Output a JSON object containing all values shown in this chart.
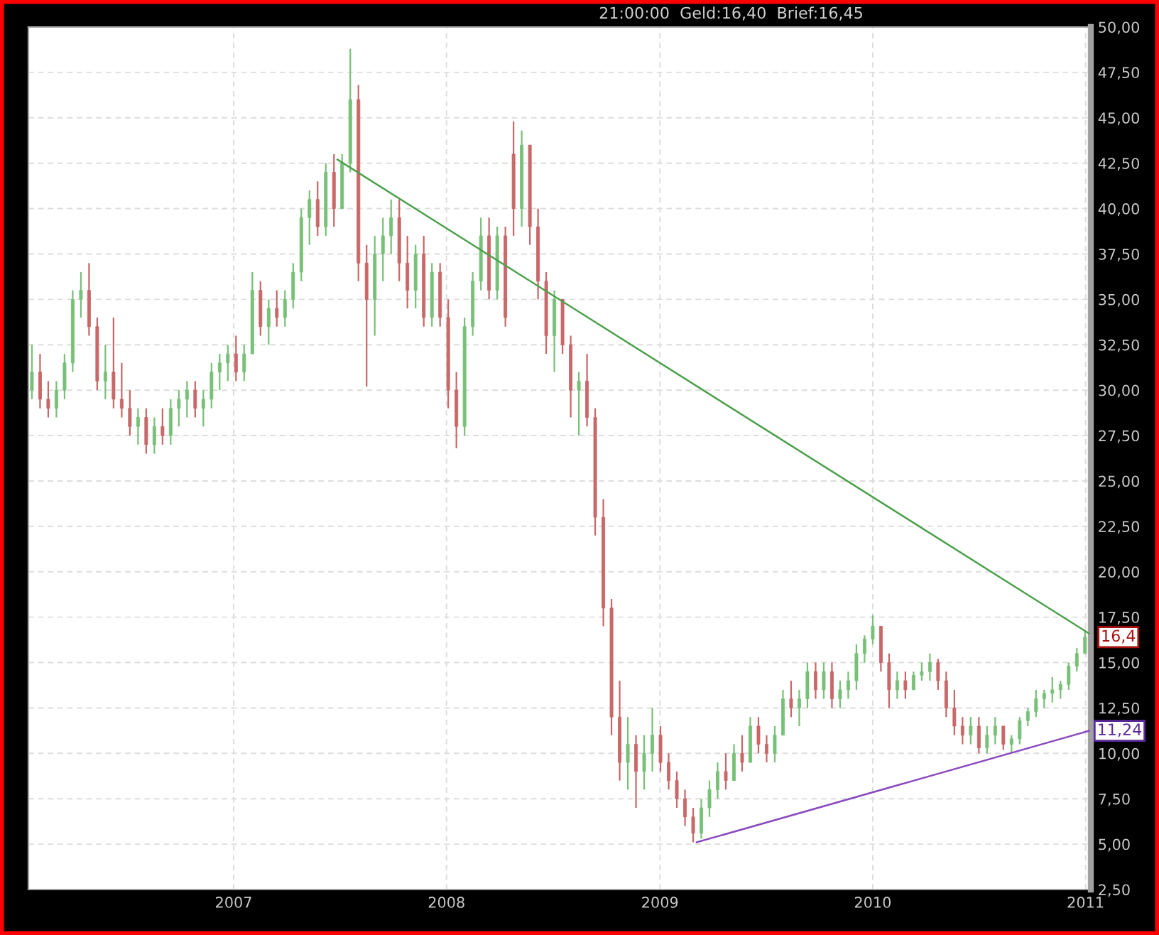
{
  "chart_data": {
    "type": "candlestick",
    "x": [
      "2006-01-20",
      "2006-02-03",
      "2006-02-17",
      "2006-03-03",
      "2006-03-17",
      "2006-03-31",
      "2006-04-14",
      "2006-04-28",
      "2006-05-12",
      "2006-05-26",
      "2006-06-09",
      "2006-06-23",
      "2006-07-07",
      "2006-07-21",
      "2006-08-04",
      "2006-08-18",
      "2006-09-01",
      "2006-09-15",
      "2006-09-29",
      "2006-10-13",
      "2006-10-27",
      "2006-11-10",
      "2006-11-24",
      "2006-12-08",
      "2006-12-22",
      "2007-01-05",
      "2007-01-19",
      "2007-02-02",
      "2007-02-16",
      "2007-03-02",
      "2007-03-16",
      "2007-03-30",
      "2007-04-13",
      "2007-04-27",
      "2007-05-11",
      "2007-05-25",
      "2007-06-08",
      "2007-06-22",
      "2007-07-06",
      "2007-07-20",
      "2007-08-03",
      "2007-08-17",
      "2007-08-31",
      "2007-09-14",
      "2007-09-28",
      "2007-10-12",
      "2007-10-26",
      "2007-11-09",
      "2007-11-23",
      "2007-12-07",
      "2007-12-21",
      "2008-01-04",
      "2008-01-18",
      "2008-02-01",
      "2008-02-15",
      "2008-02-29",
      "2008-03-14",
      "2008-03-28",
      "2008-04-11",
      "2008-04-25",
      "2008-05-09",
      "2008-05-23",
      "2008-06-06",
      "2008-06-20",
      "2008-07-04",
      "2008-07-18",
      "2008-08-01",
      "2008-08-15",
      "2008-08-29",
      "2008-09-12",
      "2008-09-26",
      "2008-10-10",
      "2008-10-24",
      "2008-11-07",
      "2008-11-21",
      "2008-12-05",
      "2008-12-19",
      "2009-01-02",
      "2009-01-16",
      "2009-01-30",
      "2009-02-13",
      "2009-02-27",
      "2009-03-13",
      "2009-03-27",
      "2009-04-10",
      "2009-04-24",
      "2009-05-08",
      "2009-05-22",
      "2009-06-05",
      "2009-06-19",
      "2009-07-03",
      "2009-07-17",
      "2009-07-31",
      "2009-08-14",
      "2009-08-28",
      "2009-09-11",
      "2009-09-25",
      "2009-10-09",
      "2009-10-23",
      "2009-11-06",
      "2009-11-20",
      "2009-12-04",
      "2009-12-18",
      "2010-01-01",
      "2010-01-15",
      "2010-01-29",
      "2010-02-12",
      "2010-02-26",
      "2010-03-12",
      "2010-03-26",
      "2010-04-09",
      "2010-04-23",
      "2010-05-07",
      "2010-05-21",
      "2010-06-04",
      "2010-06-18",
      "2010-07-02",
      "2010-07-16",
      "2010-07-30",
      "2010-08-13",
      "2010-08-27",
      "2010-09-10",
      "2010-09-24",
      "2010-10-08",
      "2010-10-22",
      "2010-11-05",
      "2010-11-19",
      "2010-12-03",
      "2010-12-17",
      "2010-12-31"
    ],
    "ohlc": [
      [
        30,
        32.5,
        29.5,
        31
      ],
      [
        31,
        32,
        29,
        29.5
      ],
      [
        29.5,
        30.5,
        28.5,
        29
      ],
      [
        29,
        30.5,
        28.5,
        30
      ],
      [
        30,
        32,
        29.5,
        31.5
      ],
      [
        31.5,
        35.5,
        31,
        35
      ],
      [
        35,
        36.5,
        34,
        35.5
      ],
      [
        35.5,
        37,
        33,
        33.5
      ],
      [
        33.5,
        34,
        30,
        30.5
      ],
      [
        30.5,
        32.5,
        29.5,
        31
      ],
      [
        31,
        34,
        29,
        29.5
      ],
      [
        29.5,
        31.5,
        28.5,
        29
      ],
      [
        29,
        30,
        27.5,
        28
      ],
      [
        28,
        29,
        27,
        28.5
      ],
      [
        28.5,
        29,
        26.5,
        27
      ],
      [
        27,
        28.5,
        26.5,
        28
      ],
      [
        28,
        29,
        27,
        27.5
      ],
      [
        27.5,
        29.5,
        27,
        29
      ],
      [
        29,
        30,
        28,
        29.5
      ],
      [
        29.5,
        30.5,
        28.5,
        30
      ],
      [
        30,
        30.5,
        28.5,
        29
      ],
      [
        29,
        30,
        28,
        29.5
      ],
      [
        29.5,
        31.5,
        29,
        31
      ],
      [
        31,
        32,
        30,
        31.5
      ],
      [
        31.5,
        32.5,
        30.5,
        32
      ],
      [
        32,
        33,
        30.5,
        31
      ],
      [
        31,
        32.5,
        30.5,
        32
      ],
      [
        32,
        36.5,
        32,
        35.5
      ],
      [
        35.5,
        36,
        33,
        33.5
      ],
      [
        33.5,
        35,
        32.5,
        34.5
      ],
      [
        34.5,
        35.5,
        33.5,
        34
      ],
      [
        34,
        35.5,
        33.5,
        35
      ],
      [
        35,
        37,
        34.5,
        36.5
      ],
      [
        36.5,
        40,
        36,
        39.5
      ],
      [
        39.5,
        41,
        38,
        40.5
      ],
      [
        40.5,
        41.5,
        38.5,
        39
      ],
      [
        39,
        42.5,
        38.5,
        42
      ],
      [
        42,
        43,
        39,
        40
      ],
      [
        40,
        43,
        40,
        42.5
      ],
      [
        42.5,
        48.8,
        42,
        46
      ],
      [
        46,
        46.8,
        36,
        37
      ],
      [
        37,
        38,
        30.2,
        35
      ],
      [
        35,
        38.5,
        33,
        37.5
      ],
      [
        37.5,
        39.5,
        36,
        38.5
      ],
      [
        38.5,
        40.5,
        37.5,
        39.5
      ],
      [
        39.5,
        40.5,
        36,
        37
      ],
      [
        37,
        38.5,
        34.5,
        35.5
      ],
      [
        35.5,
        38,
        34.5,
        37.5
      ],
      [
        37.5,
        38.5,
        33.5,
        34
      ],
      [
        34,
        37,
        33.5,
        36.5
      ],
      [
        36.5,
        37,
        33.5,
        34
      ],
      [
        34,
        35,
        29,
        30
      ],
      [
        30,
        31,
        26.8,
        28
      ],
      [
        28,
        34,
        27.5,
        33.5
      ],
      [
        33.5,
        36.5,
        33,
        36
      ],
      [
        36,
        39.5,
        35.5,
        38.5
      ],
      [
        38.5,
        39.5,
        35,
        35.5
      ],
      [
        35.5,
        39,
        35,
        38.5
      ],
      [
        38.5,
        39,
        33.5,
        34
      ],
      [
        43,
        44.8,
        38.5,
        40
      ],
      [
        40,
        44.3,
        39,
        43.5
      ],
      [
        43.5,
        43.5,
        38,
        39
      ],
      [
        39,
        40,
        35,
        36
      ],
      [
        36,
        36.5,
        32,
        33
      ],
      [
        33,
        35.5,
        31,
        35
      ],
      [
        35,
        35,
        32,
        32.5
      ],
      [
        32.5,
        33,
        28.5,
        30
      ],
      [
        30,
        31,
        27.5,
        30.5
      ],
      [
        30.5,
        32,
        28,
        28.5
      ],
      [
        28.5,
        29,
        22,
        23
      ],
      [
        23,
        24,
        17,
        18
      ],
      [
        18,
        18.5,
        11,
        12
      ],
      [
        12,
        14,
        8.5,
        9.5
      ],
      [
        9.5,
        12,
        8,
        10.5
      ],
      [
        10.5,
        11,
        7,
        9
      ],
      [
        9,
        11,
        8,
        10
      ],
      [
        10,
        12.5,
        9,
        11
      ],
      [
        11,
        11.5,
        9,
        9.5
      ],
      [
        9.5,
        10,
        8,
        8.5
      ],
      [
        8.5,
        9,
        7,
        7.5
      ],
      [
        7.5,
        8,
        6,
        6.5
      ],
      [
        6.5,
        7,
        5.1,
        5.6
      ],
      [
        5.6,
        7.5,
        5.3,
        7
      ],
      [
        7,
        8.5,
        6.5,
        8
      ],
      [
        8,
        9.5,
        7.5,
        9
      ],
      [
        9,
        10,
        8,
        8.5
      ],
      [
        8.5,
        10.5,
        8.5,
        10
      ],
      [
        10,
        11,
        9,
        9.5
      ],
      [
        9.5,
        12,
        9.5,
        11.5
      ],
      [
        11.5,
        12,
        10,
        10.5
      ],
      [
        10.5,
        11,
        9.5,
        10
      ],
      [
        10,
        11.5,
        9.5,
        11
      ],
      [
        11,
        13.5,
        11,
        13
      ],
      [
        13,
        14,
        12,
        12.5
      ],
      [
        12.5,
        13.5,
        11.5,
        13
      ],
      [
        13,
        15,
        12.5,
        14.5
      ],
      [
        14.5,
        15,
        13,
        13.5
      ],
      [
        13.5,
        15,
        13,
        14.5
      ],
      [
        14.5,
        15,
        12.5,
        13
      ],
      [
        13,
        14,
        12.5,
        13.5
      ],
      [
        13.5,
        14.5,
        13,
        14
      ],
      [
        14,
        16,
        13.5,
        15.5
      ],
      [
        15.5,
        16.5,
        15,
        16.3
      ],
      [
        16.3,
        17.6,
        16,
        17
      ],
      [
        17,
        17,
        14.5,
        15
      ],
      [
        15,
        15.5,
        12.5,
        13.5
      ],
      [
        13.5,
        14.5,
        13,
        14
      ],
      [
        14,
        14.5,
        13,
        13.5
      ],
      [
        13.5,
        14.5,
        13.5,
        14.3
      ],
      [
        14.3,
        15,
        14,
        14.5
      ],
      [
        14.5,
        15.5,
        14,
        15
      ],
      [
        15,
        15.2,
        13.5,
        14
      ],
      [
        14,
        14.5,
        12,
        12.5
      ],
      [
        12.5,
        13.5,
        11,
        11.5
      ],
      [
        11.5,
        12,
        10.5,
        11
      ],
      [
        11,
        12,
        10.5,
        11.5
      ],
      [
        11.5,
        12,
        10,
        10.3
      ],
      [
        10.3,
        11.5,
        10,
        11
      ],
      [
        11,
        12,
        10.5,
        11.5
      ],
      [
        11.5,
        11.5,
        10.2,
        10.5
      ],
      [
        10.5,
        11,
        10,
        10.8
      ],
      [
        10.8,
        12,
        10.5,
        11.8
      ],
      [
        11.8,
        12.5,
        11.5,
        12.3
      ],
      [
        12.3,
        13.5,
        12,
        13
      ],
      [
        13,
        13.5,
        12.5,
        13.3
      ],
      [
        13.3,
        14.2,
        12.8,
        13.5
      ],
      [
        13.5,
        14,
        13,
        13.8
      ],
      [
        13.8,
        15,
        13.5,
        14.8
      ],
      [
        14.8,
        15.8,
        14.5,
        15.5
      ],
      [
        15.5,
        16.8,
        15.5,
        16.4
      ]
    ],
    "colors": [
      "#78c078",
      "#c86868",
      "#c86868",
      "#78c078",
      "#78c078",
      "#78c078",
      "#78c078",
      "#c86868",
      "#c86868",
      "#78c078",
      "#c86868",
      "#c86868",
      "#c86868",
      "#78c078",
      "#c86868",
      "#78c078",
      "#c86868",
      "#78c078",
      "#78c078",
      "#78c078",
      "#c86868",
      "#78c078",
      "#78c078",
      "#78c078",
      "#78c078",
      "#c86868",
      "#78c078",
      "#78c078",
      "#c86868",
      "#78c078",
      "#c86868",
      "#78c078",
      "#78c078",
      "#78c078",
      "#78c078",
      "#c86868",
      "#78c078",
      "#c86868",
      "#78c078",
      "#78c078",
      "#c86868",
      "#c86868",
      "#78c078",
      "#78c078",
      "#78c078",
      "#c86868",
      "#c86868",
      "#78c078",
      "#c86868",
      "#78c078",
      "#c86868",
      "#c86868",
      "#c86868",
      "#78c078",
      "#78c078",
      "#78c078",
      "#c86868",
      "#78c078",
      "#c86868",
      "#c86868",
      "#78c078",
      "#c86868",
      "#c86868",
      "#c86868",
      "#78c078",
      "#c86868",
      "#c86868",
      "#78c078",
      "#c86868",
      "#c86868",
      "#c86868",
      "#c86868",
      "#c86868",
      "#78c078",
      "#c86868",
      "#78c078",
      "#78c078",
      "#c86868",
      "#c86868",
      "#c86868",
      "#c86868",
      "#c86868",
      "#78c078",
      "#78c078",
      "#78c078",
      "#c86868",
      "#78c078",
      "#c86868",
      "#78c078",
      "#c86868",
      "#c86868",
      "#78c078",
      "#78c078",
      "#c86868",
      "#78c078",
      "#78c078",
      "#c86868",
      "#78c078",
      "#c86868",
      "#78c078",
      "#78c078",
      "#78c078",
      "#78c078",
      "#78c078",
      "#c86868",
      "#c86868",
      "#78c078",
      "#c86868",
      "#78c078",
      "#78c078",
      "#78c078",
      "#c86868",
      "#c86868",
      "#c86868",
      "#c86868",
      "#78c078",
      "#c86868",
      "#78c078",
      "#78c078",
      "#c86868",
      "#78c078",
      "#78c078",
      "#78c078",
      "#78c078",
      "#78c078",
      "#78c078",
      "#78c078",
      "#78c078",
      "#78c078",
      "#78c078"
    ],
    "series": [
      {
        "type": "line",
        "color": "#4aa04a",
        "x": [
          "2007-06-28",
          "2011-01-07"
        ],
        "values": [
          42.7,
          16.6
        ]
      },
      {
        "type": "line",
        "color": "#8a4ac0",
        "x": [
          "2009-03-05",
          "2011-01-07"
        ],
        "values": [
          5.1,
          11.24
        ]
      }
    ],
    "xlim": [
      "2006-01-14",
      "2011-01-10"
    ],
    "xticks": [
      {
        "value": "2007-01-01",
        "label": "2007"
      },
      {
        "value": "2008-01-01",
        "label": "2008"
      },
      {
        "value": "2009-01-01",
        "label": "2009"
      },
      {
        "value": "2010-01-01",
        "label": "2010"
      },
      {
        "value": "2011-01-01",
        "label": "2011"
      }
    ],
    "ylim": [
      2.5,
      50
    ],
    "yticks": [
      {
        "value": 2.5,
        "label": "2,50"
      },
      {
        "value": 5,
        "label": "5,00"
      },
      {
        "value": 7.5,
        "label": "7,50"
      },
      {
        "value": 10,
        "label": "10,00"
      },
      {
        "value": 12.5,
        "label": "12,50"
      },
      {
        "value": 15,
        "label": "15,00"
      },
      {
        "value": 17.5,
        "label": "17,50"
      },
      {
        "value": 20,
        "label": "20,00"
      },
      {
        "value": 22.5,
        "label": "22,50"
      },
      {
        "value": 25,
        "label": "25,00"
      },
      {
        "value": 27.5,
        "label": "27,50"
      },
      {
        "value": 30,
        "label": "30,00"
      },
      {
        "value": 32.5,
        "label": "32,50"
      },
      {
        "value": 35,
        "label": "35,00"
      },
      {
        "value": 37.5,
        "label": "37,50"
      },
      {
        "value": 40,
        "label": "40,00"
      },
      {
        "value": 42.5,
        "label": "42,50"
      },
      {
        "value": 45,
        "label": "45,00"
      },
      {
        "value": 47.5,
        "label": "47,50"
      },
      {
        "value": 50,
        "label": "50,00"
      }
    ],
    "grid": true,
    "annotations": [
      "21:00:00  Geld:16,40  Brief:16,45",
      {
        "text": "16,4",
        "x": "2010-12-31",
        "y": 16.4
      },
      {
        "text": "11,24",
        "x": "2011-01-07",
        "y": 11.24
      }
    ]
  }
}
